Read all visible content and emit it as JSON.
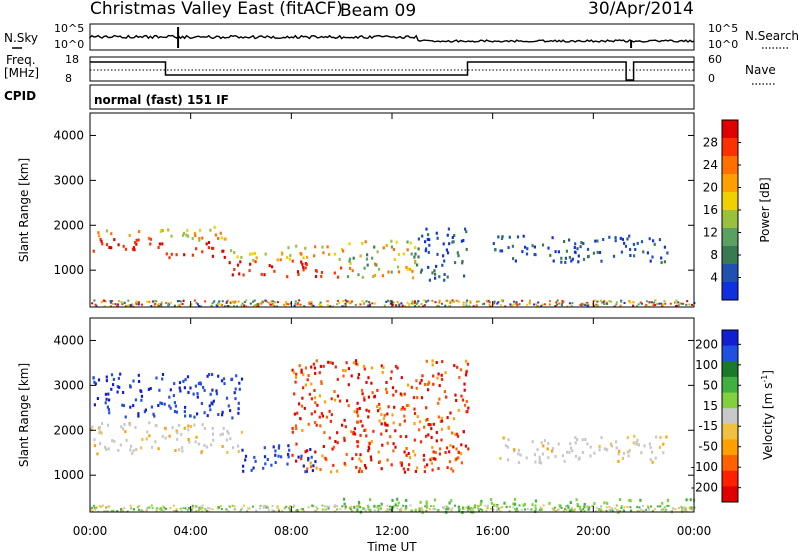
{
  "header": {
    "title": "Christmas Valley East (fitACF)",
    "beam": "Beam 09",
    "date": "30/Apr/2014"
  },
  "status_panels": {
    "nsky_label": "N.Sky",
    "nsky_scale_left": [
      "10^5",
      "10^0"
    ],
    "nsky_scale_right": [
      "10^5",
      "10^0"
    ],
    "nsearch_label": "N.Search",
    "freq_label": "Freq.",
    "freq_unit": "[MHz]",
    "freq_ticks": [
      "18",
      "8"
    ],
    "nave_ticks": [
      "60",
      "0"
    ],
    "nave_label": "Nave",
    "cpid_label": "CPID",
    "cpid_text": "normal (fast) 151 IF"
  },
  "chart_data": [
    {
      "type": "heatmap",
      "quantity": "Power",
      "ylabel": "Slant Range [km]",
      "colorbar_label": "Power [dB]",
      "ylim": [
        180,
        4500
      ],
      "yticks": [
        1000,
        2000,
        3000,
        4000
      ],
      "colorbar_ticks": [
        4,
        8,
        12,
        16,
        20,
        24,
        28
      ],
      "colors": [
        "#1030e0",
        "#2050b0",
        "#3a7a50",
        "#5aa060",
        "#9ac040",
        "#f0d000",
        "#ffa000",
        "#ff7000",
        "#ff3000",
        "#e00000"
      ],
      "scatter_bands": [
        {
          "t0": 0.0,
          "t1": 3.0,
          "r0": 1450,
          "r1": 1950,
          "level": "high"
        },
        {
          "t0": 3.0,
          "t1": 5.5,
          "r0": 1300,
          "r1": 2000,
          "level": "high"
        },
        {
          "t0": 5.5,
          "t1": 7.5,
          "r0": 900,
          "r1": 1500,
          "level": "high"
        },
        {
          "t0": 7.5,
          "t1": 10.0,
          "r0": 850,
          "r1": 1600,
          "level": "high"
        },
        {
          "t0": 10.0,
          "t1": 13.0,
          "r0": 850,
          "r1": 1700,
          "level": "mid"
        },
        {
          "t0": 13.0,
          "t1": 15.0,
          "r0": 800,
          "r1": 2000,
          "level": "low"
        },
        {
          "t0": 16.0,
          "t1": 23.0,
          "r0": 1200,
          "r1": 1800,
          "level": "low"
        }
      ]
    },
    {
      "type": "heatmap",
      "quantity": "Velocity",
      "ylabel": "Slant Range [km]",
      "xlabel": "Time UT",
      "colorbar_label": "Velocity [m s-1]",
      "colorbar_unit_main": "Velocity [m s",
      "colorbar_unit_sup": "-1",
      "colorbar_unit_end": "]",
      "ylim": [
        180,
        4500
      ],
      "yticks": [
        1000,
        2000,
        3000,
        4000
      ],
      "xticks": [
        "00:00",
        "04:00",
        "08:00",
        "12:00",
        "16:00",
        "20:00",
        "00:00"
      ],
      "xlim_hours": [
        0,
        24
      ],
      "colorbar_ticks": [
        200,
        100,
        50,
        15,
        -15,
        -50,
        -100,
        -200
      ],
      "colors": [
        "#1020d0",
        "#2050e0",
        "#1a7a2a",
        "#40b040",
        "#80d040",
        "#c8c8c8",
        "#f0c040",
        "#ffa000",
        "#ff6000",
        "#ff2000",
        "#e00000"
      ],
      "scatter_bands": [
        {
          "t0": 0.0,
          "t1": 6.0,
          "r0": 2300,
          "r1": 3300,
          "level": "toward"
        },
        {
          "t0": 0.0,
          "t1": 6.0,
          "r0": 1500,
          "r1": 2200,
          "level": "ground"
        },
        {
          "t0": 6.0,
          "t1": 9.0,
          "r0": 1100,
          "r1": 1700,
          "level": "toward"
        },
        {
          "t0": 8.0,
          "t1": 15.0,
          "r0": 1100,
          "r1": 3600,
          "level": "away"
        },
        {
          "t0": 16.0,
          "t1": 23.0,
          "r0": 1300,
          "r1": 1900,
          "level": "ground"
        },
        {
          "t0": 10.0,
          "t1": 24.0,
          "r0": 200,
          "r1": 500,
          "level": "slow"
        }
      ]
    }
  ]
}
